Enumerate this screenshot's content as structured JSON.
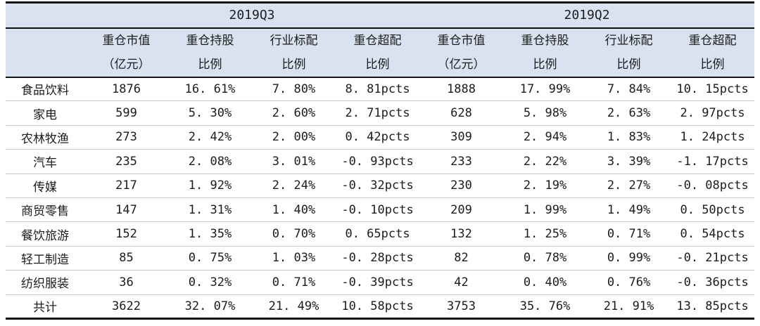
{
  "colors": {
    "header_bg": "#d9e2f1",
    "rule_black": "#111111",
    "row_line": "#c9c9c9",
    "text": "#1c1c1c"
  },
  "table": {
    "quarters": [
      "2019Q3",
      "2019Q2"
    ],
    "column_headers": [
      {
        "line1": "重仓市值",
        "line2": "（亿元）"
      },
      {
        "line1": "重仓持股",
        "line2": "比例"
      },
      {
        "line1": "行业标配",
        "line2": "比例"
      },
      {
        "line1": "重仓超配",
        "line2": "比例"
      },
      {
        "line1": "重仓市值",
        "line2": "（亿元）"
      },
      {
        "line1": "重仓持股",
        "line2": "比例"
      },
      {
        "line1": "行业标配",
        "line2": "比例"
      },
      {
        "line1": "重仓超配",
        "line2": "比例"
      }
    ],
    "rows": [
      {
        "label": "食品饮料",
        "values": [
          "1876",
          "16. 61%",
          "7. 80%",
          "8. 81pcts",
          "1888",
          "17. 99%",
          "7. 84%",
          "10. 15pcts"
        ],
        "total": false
      },
      {
        "label": "家电",
        "values": [
          "599",
          "5. 30%",
          "2. 60%",
          "2. 71pcts",
          "628",
          "5. 98%",
          "2. 63%",
          "2. 97pcts"
        ],
        "total": false
      },
      {
        "label": "农林牧渔",
        "values": [
          "273",
          "2. 42%",
          "2. 00%",
          "0. 42pcts",
          "309",
          "2. 94%",
          "1. 83%",
          "1. 24pcts"
        ],
        "total": false
      },
      {
        "label": "汽车",
        "values": [
          "235",
          "2. 08%",
          "3. 01%",
          "-0. 93pcts",
          "233",
          "2. 22%",
          "3. 39%",
          "-1. 17pcts"
        ],
        "total": false
      },
      {
        "label": "传媒",
        "values": [
          "217",
          "1. 92%",
          "2. 24%",
          "-0. 32pcts",
          "230",
          "2. 19%",
          "2. 27%",
          "-0. 08pcts"
        ],
        "total": false
      },
      {
        "label": "商贸零售",
        "values": [
          "147",
          "1. 31%",
          "1. 40%",
          "-0. 10pcts",
          "209",
          "1. 99%",
          "1. 49%",
          "0. 50pcts"
        ],
        "total": false
      },
      {
        "label": "餐饮旅游",
        "values": [
          "152",
          "1. 35%",
          "0. 70%",
          "0. 65pcts",
          "132",
          "1. 25%",
          "0. 71%",
          "0. 54pcts"
        ],
        "total": false
      },
      {
        "label": "轻工制造",
        "values": [
          "85",
          "0. 75%",
          "1. 03%",
          "-0. 28pcts",
          "82",
          "0. 78%",
          "0. 99%",
          "-0. 21pcts"
        ],
        "total": false
      },
      {
        "label": "纺织服装",
        "values": [
          "36",
          "0. 32%",
          "0. 71%",
          "-0. 39pcts",
          "42",
          "0. 40%",
          "0. 76%",
          "-0. 36pcts"
        ],
        "total": false
      },
      {
        "label": "共计",
        "values": [
          "3622",
          "32. 07%",
          "21. 49%",
          "10. 58pcts",
          "3753",
          "35. 76%",
          "21. 91%",
          "13. 85pcts"
        ],
        "total": true
      }
    ]
  },
  "chart_data": {
    "type": "table",
    "title": "",
    "column_groups": [
      "2019Q3",
      "2019Q2"
    ],
    "columns": [
      "重仓市值（亿元）",
      "重仓持股比例",
      "行业标配比例",
      "重仓超配比例",
      "重仓市值（亿元）",
      "重仓持股比例",
      "行业标配比例",
      "重仓超配比例"
    ],
    "categories": [
      "食品饮料",
      "家电",
      "农林牧渔",
      "汽车",
      "传媒",
      "商贸零售",
      "餐饮旅游",
      "轻工制造",
      "纺织服装",
      "共计"
    ],
    "series": [
      {
        "name": "2019Q3 重仓市值（亿元）",
        "values": [
          1876,
          599,
          273,
          235,
          217,
          147,
          152,
          85,
          36,
          3622
        ]
      },
      {
        "name": "2019Q3 重仓持股比例(%)",
        "values": [
          16.61,
          5.3,
          2.42,
          2.08,
          1.92,
          1.31,
          1.35,
          0.75,
          0.32,
          32.07
        ]
      },
      {
        "name": "2019Q3 行业标配比例(%)",
        "values": [
          7.8,
          2.6,
          2.0,
          3.01,
          2.24,
          1.4,
          0.7,
          1.03,
          0.71,
          21.49
        ]
      },
      {
        "name": "2019Q3 重仓超配比例(pcts)",
        "values": [
          8.81,
          2.71,
          0.42,
          -0.93,
          -0.32,
          -0.1,
          0.65,
          -0.28,
          -0.39,
          10.58
        ]
      },
      {
        "name": "2019Q2 重仓市值（亿元）",
        "values": [
          1888,
          628,
          309,
          233,
          230,
          209,
          132,
          82,
          42,
          3753
        ]
      },
      {
        "name": "2019Q2 重仓持股比例(%)",
        "values": [
          17.99,
          5.98,
          2.94,
          2.22,
          2.19,
          1.99,
          1.25,
          0.78,
          0.4,
          35.76
        ]
      },
      {
        "name": "2019Q2 行业标配比例(%)",
        "values": [
          7.84,
          2.63,
          1.83,
          3.39,
          2.27,
          1.49,
          0.71,
          0.99,
          0.76,
          21.91
        ]
      },
      {
        "name": "2019Q2 重仓超配比例(pcts)",
        "values": [
          10.15,
          2.97,
          1.24,
          -1.17,
          -0.08,
          0.5,
          0.54,
          -0.21,
          -0.36,
          13.85
        ]
      }
    ],
    "layout": {
      "grid": "horizontal row separators only",
      "header_background": "#d9e2f1",
      "legend_position": "none"
    }
  }
}
